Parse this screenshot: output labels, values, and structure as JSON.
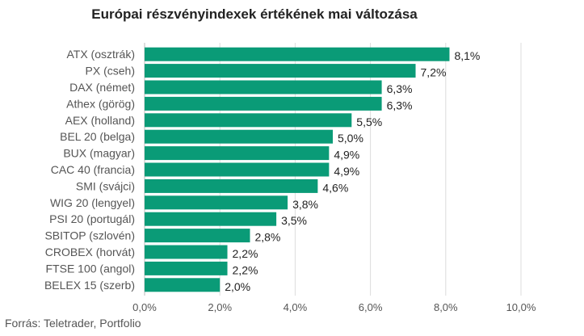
{
  "title": "Európai részvényindexek értékének mai változása",
  "source": "Forrás: Teletrader, Portfolio",
  "colors": {
    "bar": "#0a9b77"
  },
  "chart_data": {
    "type": "bar",
    "orientation": "horizontal",
    "title": "Európai részvényindexek értékének mai változása",
    "categories": [
      "ATX (osztrák)",
      "PX (cseh)",
      "DAX (német)",
      "Athex (görög)",
      "AEX (holland)",
      "BEL 20 (belga)",
      "BUX (magyar)",
      "CAC 40 (francia)",
      "SMI (svájci)",
      "WIG 20 (lengyel)",
      "PSI 20 (portugál)",
      "SBITOP (szlovén)",
      "CROBEX (horvát)",
      "FTSE 100 (angol)",
      "BELEX 15 (szerb)"
    ],
    "values": [
      8.1,
      7.2,
      6.3,
      6.3,
      5.5,
      5.0,
      4.9,
      4.9,
      4.6,
      3.8,
      3.5,
      2.8,
      2.2,
      2.2,
      2.0
    ],
    "value_labels": [
      "8,1%",
      "7,2%",
      "6,3%",
      "6,3%",
      "5,5%",
      "5,0%",
      "4,9%",
      "4,9%",
      "4,6%",
      "3,8%",
      "3,5%",
      "2,8%",
      "2,2%",
      "2,2%",
      "2,0%"
    ],
    "xlim": [
      0,
      10
    ],
    "xticks": [
      0,
      2,
      4,
      6,
      8,
      10
    ],
    "xtick_labels": [
      "0,0%",
      "2,0%",
      "4,0%",
      "6,0%",
      "8,0%",
      "10,0%"
    ],
    "grid": true,
    "legend": false
  }
}
